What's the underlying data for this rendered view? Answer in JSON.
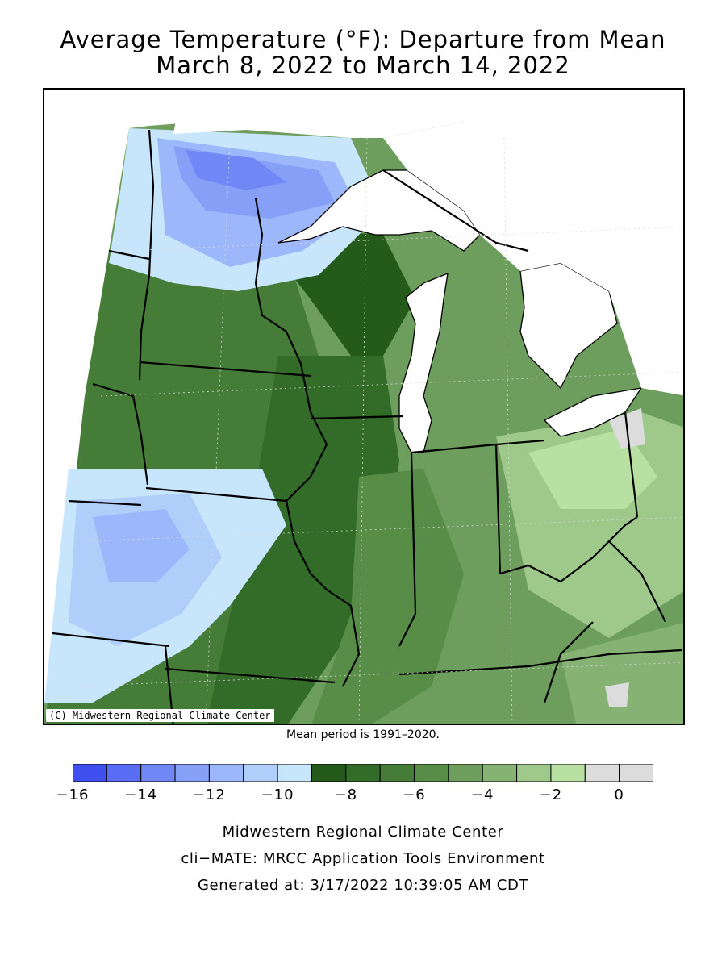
{
  "title_line1": "Average Temperature (°F): Departure from Mean",
  "title_line2": "March 8, 2022 to March 14, 2022",
  "copyright": "(C) Midwestern Regional Climate Center",
  "mean_period": "Mean period is 1991–2020.",
  "legend": {
    "bins": [
      {
        "from": -16,
        "to": -15,
        "color": "#4050f0"
      },
      {
        "from": -15,
        "to": -14,
        "color": "#5a6ef5"
      },
      {
        "from": -14,
        "to": -13,
        "color": "#6f88f5"
      },
      {
        "from": -13,
        "to": -12,
        "color": "#87a0f7"
      },
      {
        "from": -12,
        "to": -11,
        "color": "#9db8fa"
      },
      {
        "from": -11,
        "to": -10,
        "color": "#b0cefa"
      },
      {
        "from": -10,
        "to": -9,
        "color": "#c8e6fb"
      },
      {
        "from": -9,
        "to": -8,
        "color": "#245a1a"
      },
      {
        "from": -8,
        "to": -7,
        "color": "#336b28"
      },
      {
        "from": -7,
        "to": -6,
        "color": "#457c38"
      },
      {
        "from": -6,
        "to": -5,
        "color": "#588d48"
      },
      {
        "from": -5,
        "to": -4,
        "color": "#6e9e5d"
      },
      {
        "from": -4,
        "to": -3,
        "color": "#86b373"
      },
      {
        "from": -3,
        "to": -2,
        "color": "#9fc98b"
      },
      {
        "from": -2,
        "to": -1,
        "color": "#b7e0a2"
      },
      {
        "from": -1,
        "to": 0,
        "color": "#dcdcdc"
      },
      {
        "from": 0,
        "to": 1,
        "color": "#dcdcdc"
      }
    ],
    "labels": [
      "−16",
      "−14",
      "−12",
      "−10",
      "−8",
      "−6",
      "−4",
      "−2",
      "0"
    ]
  },
  "footer": {
    "line1": "Midwestern Regional Climate Center",
    "line2": "cli−MATE: MRCC Application Tools Environment",
    "line3": "Generated at: 3/17/2022 10:39:05 AM CDT"
  }
}
